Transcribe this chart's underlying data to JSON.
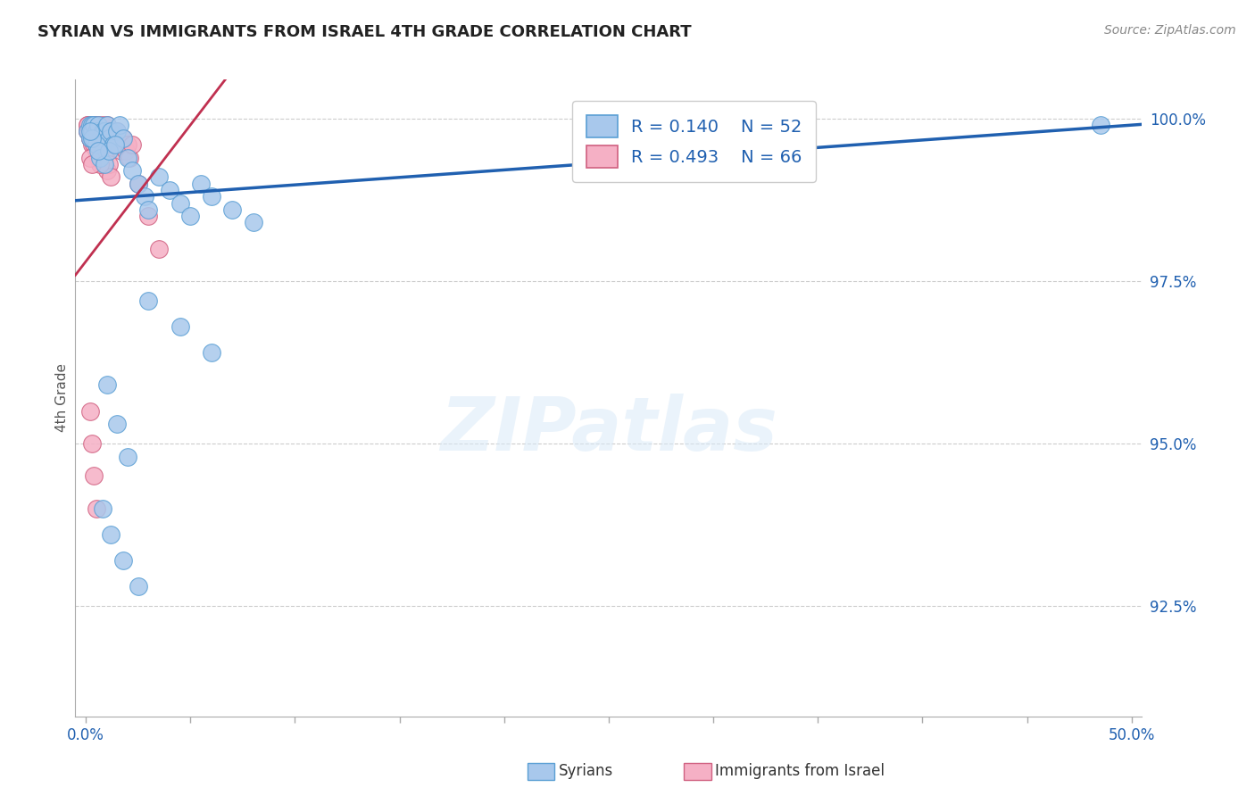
{
  "title": "SYRIAN VS IMMIGRANTS FROM ISRAEL 4TH GRADE CORRELATION CHART",
  "source": "Source: ZipAtlas.com",
  "ylabel": "4th Grade",
  "xlim": [
    -0.005,
    0.505
  ],
  "ylim": [
    0.908,
    1.006
  ],
  "ytick_vals": [
    0.925,
    0.95,
    0.975,
    1.0
  ],
  "ytick_labels": [
    "92.5%",
    "95.0%",
    "97.5%",
    "100.0%"
  ],
  "xtick_vals": [
    0.0,
    0.05,
    0.1,
    0.15,
    0.2,
    0.25,
    0.3,
    0.35,
    0.4,
    0.45,
    0.5
  ],
  "xtick_labels_show": [
    "0.0%",
    "",
    "",
    "",
    "",
    "",
    "",
    "",
    "",
    "",
    "50.0%"
  ],
  "grid_color": "#cccccc",
  "bg_color": "#ffffff",
  "s1_color": "#a8c8ec",
  "s1_edge": "#5a9fd4",
  "s2_color": "#f5b0c5",
  "s2_edge": "#d06080",
  "line1_color": "#2060b0",
  "line2_color": "#c03050",
  "r1": 0.14,
  "n1": 52,
  "r2": 0.493,
  "n2": 66
}
